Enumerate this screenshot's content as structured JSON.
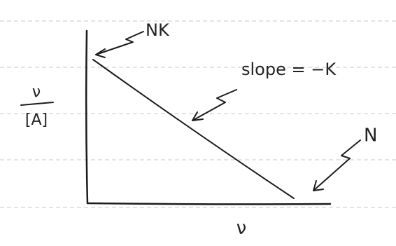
{
  "labels": {
    "y_intercept": "NK",
    "slope": "slope = −K",
    "x_intercept": "N",
    "x_axis": "ν",
    "y_axis_numerator": "ν",
    "y_axis_denominator": "[A]"
  }
}
